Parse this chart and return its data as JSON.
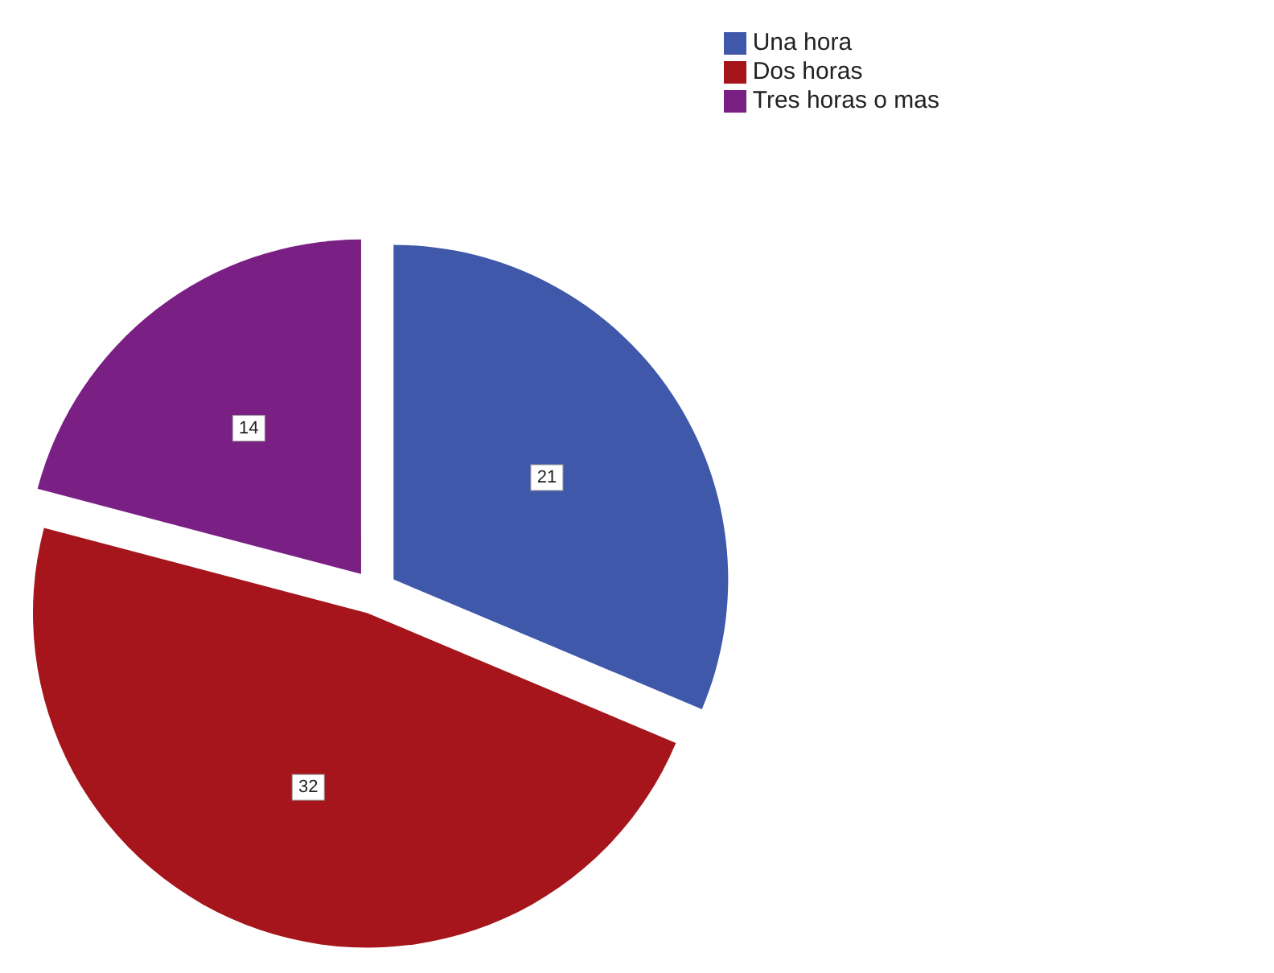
{
  "chart_data": {
    "type": "pie",
    "categories": [
      "Una hora",
      "Dos horas",
      "Tres horas o mas"
    ],
    "values": [
      21,
      32,
      14
    ],
    "colors": [
      "#3f58aa",
      "#a5151b",
      "#7a1f84"
    ],
    "data_labels": true,
    "legend": "top right"
  }
}
